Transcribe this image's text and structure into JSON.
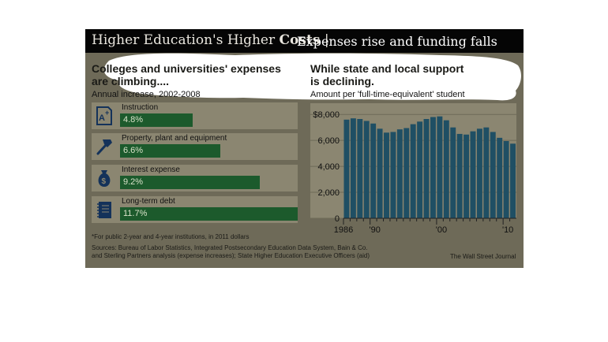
{
  "header": {
    "title_main_1": "Higher Education's Higher",
    "title_main_2": "Costs",
    "title_separator": "|",
    "title_sub": "Expenses rise and funding falls"
  },
  "left_panel": {
    "heading_line1": "Colleges and universities' expenses",
    "heading_line2": "are climbing....",
    "subheading": "Annual increase, 2002-2008",
    "items": [
      {
        "label": "Instruction",
        "value_text": "4.8%",
        "value": 4.8,
        "icon": "instruction-grade-icon"
      },
      {
        "label": "Property, plant and equipment",
        "value_text": "6.6%",
        "value": 6.6,
        "icon": "hammer-icon"
      },
      {
        "label": "Interest expense",
        "value_text": "9.2%",
        "value": 9.2,
        "icon": "money-bag-icon"
      },
      {
        "label": "Long-term debt",
        "value_text": "11.7%",
        "value": 11.7,
        "icon": "notebook-icon"
      }
    ]
  },
  "right_panel": {
    "heading_line1": "While state and local support",
    "heading_line2": "is declining.",
    "subheading": "Amount per 'full-time-equivalent' student"
  },
  "footnotes": {
    "asterisk_note": "*For public 2-year and 4-year institutions, in 2011 dollars",
    "sources_line1": "Sources: Bureau of Labor Statistics, Integrated Postsecondary Education Data System, Bain & Co.",
    "sources_line2": "and Sterling Partners analysis (expense increases); State Higher Education Executive Officers (aid)",
    "credit": "The Wall Street Journal"
  },
  "colors": {
    "background": "#6e6a58",
    "title_bar": "#050505",
    "left_bar": "#1c5a2c",
    "right_bar": "#1f4f64",
    "row_band": "#8b8671"
  },
  "chart_data": [
    {
      "type": "bar",
      "title": "Colleges and universities' expenses are climbing....",
      "subtitle": "Annual increase, 2002-2008",
      "categories": [
        "Instruction",
        "Property, plant and equipment",
        "Interest expense",
        "Long-term debt"
      ],
      "values": [
        4.8,
        6.6,
        9.2,
        11.7
      ],
      "unit": "%",
      "orientation": "horizontal"
    },
    {
      "type": "bar",
      "title": "While state and local support is declining.",
      "subtitle": "Amount per 'full-time-equivalent' student",
      "x": [
        1986,
        1987,
        1988,
        1989,
        1990,
        1991,
        1992,
        1993,
        1994,
        1995,
        1996,
        1997,
        1998,
        1999,
        2000,
        2001,
        2002,
        2003,
        2004,
        2005,
        2006,
        2007,
        2008,
        2009,
        2010,
        2011
      ],
      "values": [
        7600,
        7700,
        7650,
        7500,
        7300,
        6900,
        6600,
        6650,
        6850,
        6950,
        7250,
        7450,
        7650,
        7800,
        7850,
        7550,
        7000,
        6500,
        6450,
        6700,
        6900,
        7000,
        6650,
        6200,
        5950,
        5750
      ],
      "x_tick_labels": [
        "1986",
        "'90",
        "'00",
        "'10"
      ],
      "x_ticks": [
        1986,
        1990,
        2000,
        2010
      ],
      "y_tick_labels": [
        "$8,000",
        "6,000",
        "4,000",
        "2,000",
        "0"
      ],
      "y_ticks": [
        8000,
        6000,
        4000,
        2000,
        0
      ],
      "ylim": [
        0,
        8500
      ],
      "grid": true
    }
  ]
}
